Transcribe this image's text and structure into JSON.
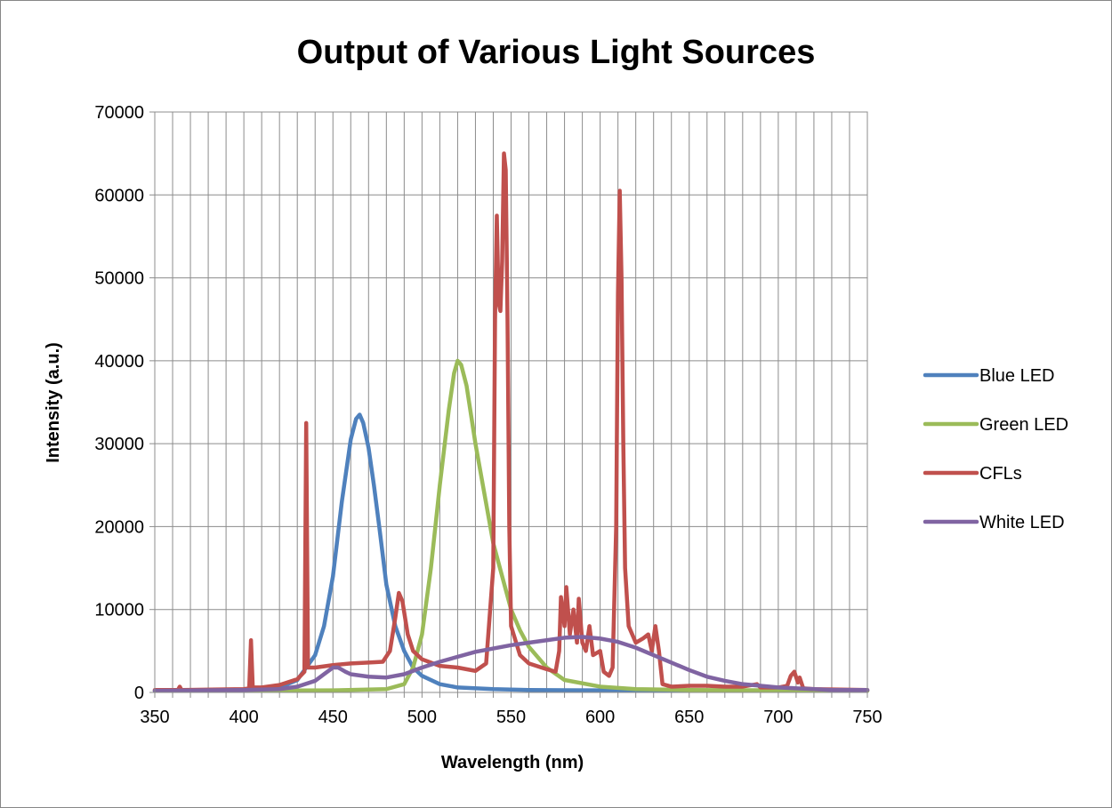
{
  "chart_data": {
    "type": "line",
    "title": "Output of Various Light Sources",
    "xlabel": "Wavelength (nm)",
    "ylabel": "Intensity (a.u.)",
    "xlim": [
      350,
      750
    ],
    "ylim": [
      0,
      70000
    ],
    "xticks": [
      350,
      400,
      450,
      500,
      550,
      600,
      650,
      700,
      750
    ],
    "yticks": [
      0,
      10000,
      20000,
      30000,
      40000,
      50000,
      60000,
      70000
    ],
    "x_minor_step": 10,
    "grid": true,
    "legend_position": "right",
    "series": [
      {
        "name": "Blue LED",
        "color": "#4f81bd",
        "points": [
          [
            350,
            200
          ],
          [
            400,
            250
          ],
          [
            420,
            600
          ],
          [
            430,
            1500
          ],
          [
            440,
            4500
          ],
          [
            445,
            8000
          ],
          [
            450,
            14000
          ],
          [
            455,
            23000
          ],
          [
            460,
            30500
          ],
          [
            463,
            33000
          ],
          [
            465,
            33500
          ],
          [
            467,
            32500
          ],
          [
            470,
            29500
          ],
          [
            473,
            25000
          ],
          [
            476,
            20000
          ],
          [
            480,
            13000
          ],
          [
            485,
            8000
          ],
          [
            490,
            5000
          ],
          [
            495,
            3000
          ],
          [
            500,
            2000
          ],
          [
            510,
            1000
          ],
          [
            520,
            600
          ],
          [
            540,
            400
          ],
          [
            560,
            300
          ],
          [
            600,
            250
          ],
          [
            700,
            200
          ],
          [
            750,
            200
          ]
        ]
      },
      {
        "name": "Green LED",
        "color": "#9bbb59",
        "points": [
          [
            350,
            200
          ],
          [
            450,
            250
          ],
          [
            480,
            400
          ],
          [
            490,
            1000
          ],
          [
            495,
            3000
          ],
          [
            500,
            7000
          ],
          [
            505,
            15000
          ],
          [
            510,
            25000
          ],
          [
            515,
            34000
          ],
          [
            518,
            38500
          ],
          [
            520,
            40000
          ],
          [
            522,
            39500
          ],
          [
            525,
            37000
          ],
          [
            530,
            30000
          ],
          [
            535,
            24000
          ],
          [
            540,
            18000
          ],
          [
            545,
            14000
          ],
          [
            550,
            10000
          ],
          [
            555,
            7500
          ],
          [
            560,
            5500
          ],
          [
            570,
            3000
          ],
          [
            580,
            1500
          ],
          [
            600,
            700
          ],
          [
            620,
            400
          ],
          [
            650,
            300
          ],
          [
            700,
            250
          ],
          [
            750,
            200
          ]
        ]
      },
      {
        "name": "CFLs",
        "color": "#c0504d",
        "points": [
          [
            350,
            300
          ],
          [
            363,
            300
          ],
          [
            364,
            700
          ],
          [
            365,
            300
          ],
          [
            400,
            400
          ],
          [
            403,
            500
          ],
          [
            404,
            6300
          ],
          [
            405,
            600
          ],
          [
            410,
            600
          ],
          [
            420,
            900
          ],
          [
            430,
            1600
          ],
          [
            434,
            2500
          ],
          [
            435,
            32500
          ],
          [
            436,
            3000
          ],
          [
            440,
            3000
          ],
          [
            450,
            3300
          ],
          [
            460,
            3500
          ],
          [
            470,
            3600
          ],
          [
            478,
            3700
          ],
          [
            482,
            5000
          ],
          [
            485,
            9000
          ],
          [
            487,
            12000
          ],
          [
            489,
            11000
          ],
          [
            492,
            7000
          ],
          [
            495,
            5000
          ],
          [
            500,
            4000
          ],
          [
            510,
            3200
          ],
          [
            520,
            3000
          ],
          [
            530,
            2600
          ],
          [
            536,
            3500
          ],
          [
            540,
            15000
          ],
          [
            541,
            45000
          ],
          [
            542,
            57500
          ],
          [
            543,
            47000
          ],
          [
            544,
            46000
          ],
          [
            545,
            52000
          ],
          [
            546,
            65000
          ],
          [
            547,
            63000
          ],
          [
            548,
            45000
          ],
          [
            549,
            20000
          ],
          [
            550,
            8000
          ],
          [
            555,
            4500
          ],
          [
            560,
            3500
          ],
          [
            570,
            2800
          ],
          [
            575,
            2500
          ],
          [
            577,
            5000
          ],
          [
            578,
            11500
          ],
          [
            580,
            8000
          ],
          [
            581,
            12700
          ],
          [
            583,
            7000
          ],
          [
            585,
            10000
          ],
          [
            587,
            6000
          ],
          [
            588,
            11300
          ],
          [
            590,
            6000
          ],
          [
            592,
            5000
          ],
          [
            594,
            8000
          ],
          [
            596,
            4500
          ],
          [
            600,
            5000
          ],
          [
            602,
            2500
          ],
          [
            605,
            2000
          ],
          [
            607,
            3000
          ],
          [
            609,
            20000
          ],
          [
            610,
            48000
          ],
          [
            611,
            60500
          ],
          [
            612,
            50000
          ],
          [
            613,
            30000
          ],
          [
            614,
            15000
          ],
          [
            616,
            8000
          ],
          [
            620,
            6000
          ],
          [
            624,
            6500
          ],
          [
            627,
            7000
          ],
          [
            629,
            5000
          ],
          [
            631,
            8000
          ],
          [
            633,
            5000
          ],
          [
            635,
            1000
          ],
          [
            640,
            700
          ],
          [
            650,
            800
          ],
          [
            660,
            800
          ],
          [
            670,
            700
          ],
          [
            680,
            700
          ],
          [
            688,
            1000
          ],
          [
            690,
            600
          ],
          [
            700,
            600
          ],
          [
            705,
            800
          ],
          [
            707,
            2000
          ],
          [
            709,
            2500
          ],
          [
            711,
            1200
          ],
          [
            712,
            1800
          ],
          [
            714,
            500
          ],
          [
            720,
            400
          ],
          [
            750,
            300
          ]
        ]
      },
      {
        "name": "White LED",
        "color": "#8064a2",
        "points": [
          [
            350,
            200
          ],
          [
            400,
            300
          ],
          [
            420,
            400
          ],
          [
            430,
            700
          ],
          [
            440,
            1400
          ],
          [
            445,
            2200
          ],
          [
            450,
            3000
          ],
          [
            453,
            3000
          ],
          [
            457,
            2500
          ],
          [
            460,
            2200
          ],
          [
            470,
            1900
          ],
          [
            480,
            1800
          ],
          [
            490,
            2200
          ],
          [
            500,
            3000
          ],
          [
            510,
            3700
          ],
          [
            520,
            4300
          ],
          [
            530,
            4900
          ],
          [
            540,
            5300
          ],
          [
            550,
            5700
          ],
          [
            560,
            6000
          ],
          [
            570,
            6300
          ],
          [
            580,
            6600
          ],
          [
            590,
            6700
          ],
          [
            600,
            6500
          ],
          [
            610,
            6100
          ],
          [
            620,
            5400
          ],
          [
            630,
            4500
          ],
          [
            640,
            3600
          ],
          [
            650,
            2700
          ],
          [
            660,
            1900
          ],
          [
            670,
            1400
          ],
          [
            680,
            1000
          ],
          [
            690,
            800
          ],
          [
            700,
            600
          ],
          [
            710,
            500
          ],
          [
            720,
            400
          ],
          [
            730,
            300
          ],
          [
            750,
            300
          ]
        ]
      }
    ]
  }
}
